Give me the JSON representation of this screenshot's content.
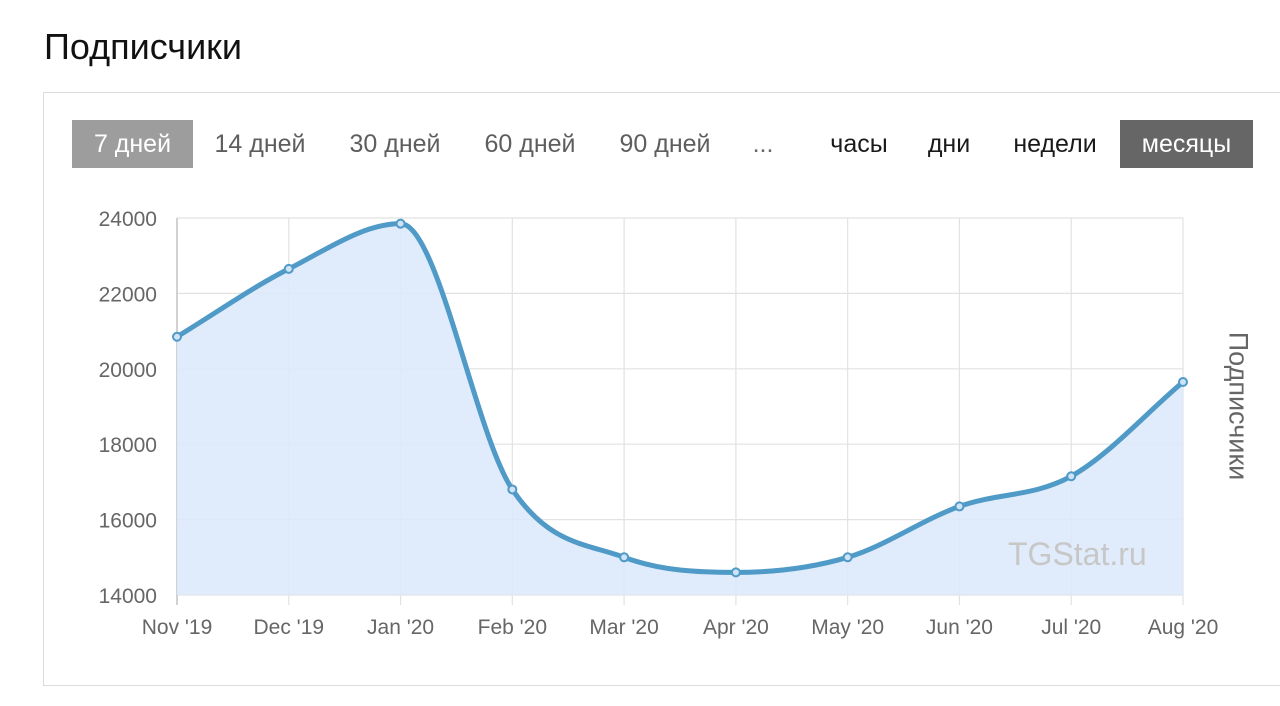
{
  "page": {
    "title": "Подписчики"
  },
  "range_tabs": [
    {
      "label": "7 дней",
      "active": true
    },
    {
      "label": "14 дней",
      "active": false
    },
    {
      "label": "30 дней",
      "active": false
    },
    {
      "label": "60 дней",
      "active": false
    },
    {
      "label": "90 дней",
      "active": false
    }
  ],
  "more_label": "...",
  "unit_tabs": [
    {
      "label": "часы",
      "active": false
    },
    {
      "label": "дни",
      "active": false
    },
    {
      "label": "недели",
      "active": false
    },
    {
      "label": "месяцы",
      "active": true
    }
  ],
  "watermark": "TGStat.ru",
  "colors": {
    "line": "#4f9ac7",
    "fill": "#dde9fb",
    "grid": "#e2e2e2",
    "active_range_tab": "#9d9d9d",
    "active_unit_tab": "#666666"
  },
  "chart_data": {
    "type": "area",
    "title": "",
    "xlabel": "",
    "ylabel": "Подписчики",
    "categories": [
      "Nov '19",
      "Dec '19",
      "Jan '20",
      "Feb '20",
      "Mar '20",
      "Apr '20",
      "May '20",
      "Jun '20",
      "Jul '20",
      "Aug '20"
    ],
    "series": [
      {
        "values": [
          20850,
          22650,
          23850,
          16800,
          15000,
          14600,
          15000,
          16350,
          17150,
          19650
        ]
      }
    ],
    "ylim": [
      14000,
      24000
    ],
    "yticks": [
      14000,
      16000,
      18000,
      20000,
      22000,
      24000
    ],
    "grid": true,
    "legend": "none"
  }
}
